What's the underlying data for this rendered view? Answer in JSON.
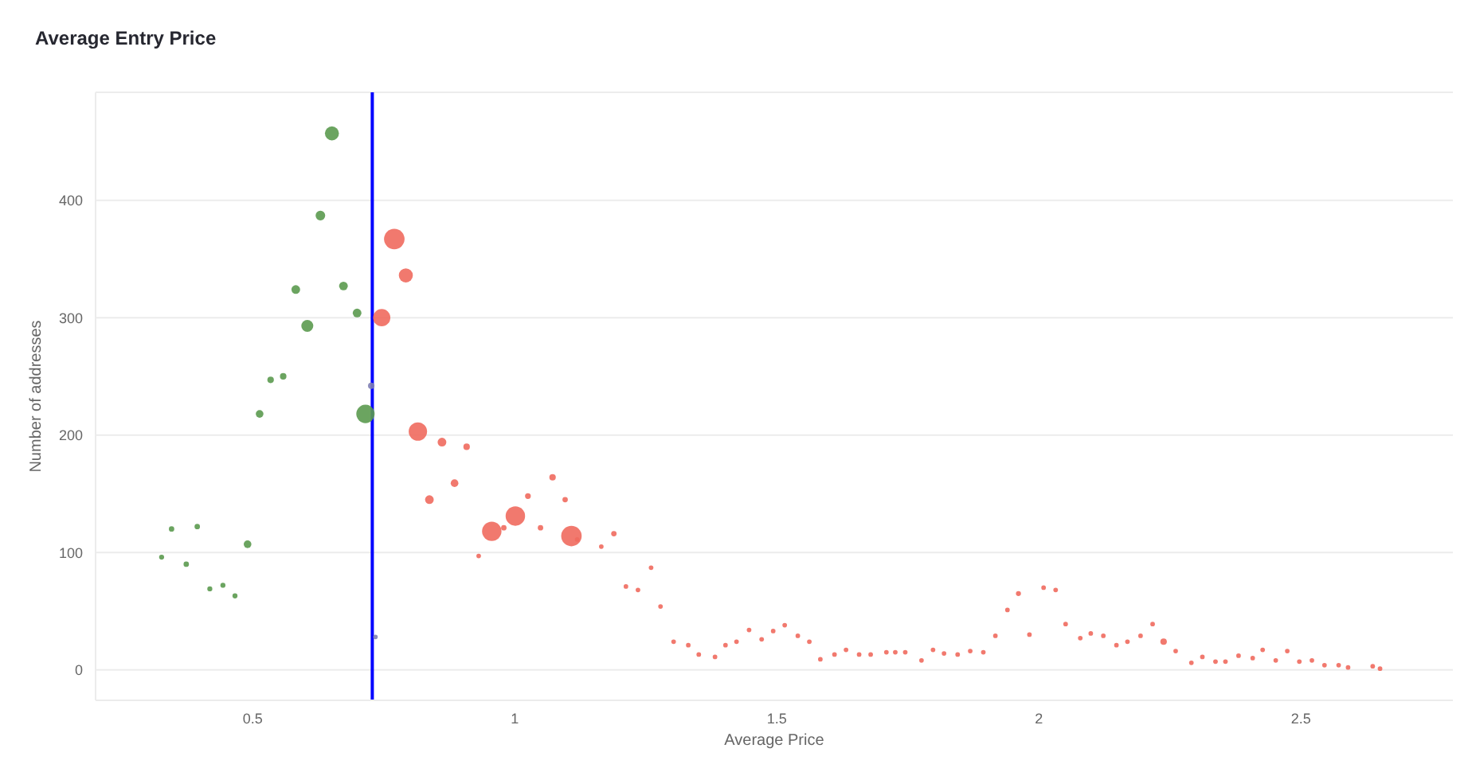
{
  "chart_data": {
    "type": "bubble",
    "title": "Average Entry Price",
    "xlabel": "Average Price",
    "ylabel": "Number of addresses",
    "xlim": [
      0.2,
      2.79
    ],
    "xticks": [
      0.5,
      1,
      1.5,
      2,
      2.5
    ],
    "ylim": [
      -26,
      492
    ],
    "yticks": [
      0,
      100,
      200,
      300,
      400
    ],
    "grid": "y",
    "series": [
      {
        "color": "#5b9a4f",
        "x": [
          0.651,
          0.629,
          0.582,
          0.673,
          0.699,
          0.604,
          0.534,
          0.558,
          0.513,
          0.715,
          0.345,
          0.394,
          0.49,
          0.326,
          0.373,
          0.418,
          0.443,
          0.466
        ],
        "values": [
          457,
          387,
          324,
          327,
          304,
          293,
          247,
          250,
          218,
          218,
          120,
          122,
          107,
          96,
          90,
          69,
          72,
          63
        ],
        "sizes": [
          0.47,
          0.22,
          0.18,
          0.18,
          0.18,
          0.34,
          0.1,
          0.1,
          0.14,
          0.8,
          0.07,
          0.07,
          0.14,
          0.06,
          0.07,
          0.06,
          0.06,
          0.06
        ]
      },
      {
        "color": "#7f7fb5",
        "x": [
          0.726,
          0.734
        ],
        "values": [
          242,
          28
        ],
        "sizes": [
          0.1,
          0.05
        ]
      },
      {
        "color": "#ef6a5e",
        "x": [
          0.77,
          0.792,
          0.746,
          0.815,
          0.861,
          0.908,
          0.885,
          0.837,
          1.072,
          1.025,
          1.096,
          1.001,
          0.956,
          0.979,
          1.049,
          0.931,
          1.108,
          1.119,
          1.165,
          1.189,
          1.212,
          1.235,
          1.26,
          1.278,
          1.303,
          1.331,
          1.351,
          1.382,
          1.402,
          1.423,
          1.447,
          1.471,
          1.493,
          1.515,
          1.54,
          1.562,
          1.583,
          1.61,
          1.632,
          1.657,
          1.679,
          1.709,
          1.726,
          1.745,
          1.776,
          1.798,
          1.819,
          1.845,
          1.869,
          1.894,
          1.917,
          1.94,
          1.961,
          1.982,
          2.009,
          2.032,
          2.051,
          2.079,
          2.099,
          2.123,
          2.148,
          2.169,
          2.194,
          2.217,
          2.238,
          2.261,
          2.291,
          2.312,
          2.337,
          2.356,
          2.381,
          2.408,
          2.427,
          2.452,
          2.474,
          2.497,
          2.521,
          2.545,
          2.572,
          2.59,
          2.637,
          2.651
        ],
        "values": [
          367,
          336,
          300,
          203,
          194,
          190,
          159,
          145,
          164,
          148,
          145,
          131,
          118,
          121,
          121,
          97,
          114,
          111,
          105,
          116,
          71,
          68,
          87,
          54,
          24,
          21,
          13,
          11,
          21,
          24,
          34,
          26,
          33,
          38,
          29,
          24,
          9,
          13,
          17,
          13,
          13,
          15,
          15,
          15,
          8,
          17,
          14,
          13,
          16,
          15,
          29,
          51,
          65,
          30,
          70,
          68,
          39,
          27,
          31,
          29,
          21,
          24,
          29,
          39,
          24,
          16,
          6,
          11,
          7,
          7,
          12,
          10,
          17,
          8,
          16,
          7,
          8,
          4,
          4,
          2,
          3,
          1
        ],
        "sizes": [
          1,
          0.47,
          0.71,
          0.8,
          0.18,
          0.1,
          0.14,
          0.18,
          0.1,
          0.08,
          0.07,
          0.9,
          0.9,
          0.07,
          0.07,
          0.05,
          1,
          0.05,
          0.05,
          0.07,
          0.05,
          0.05,
          0.05,
          0.05,
          0.05,
          0.05,
          0.05,
          0.05,
          0.05,
          0.05,
          0.05,
          0.05,
          0.05,
          0.05,
          0.05,
          0.05,
          0.05,
          0.05,
          0.05,
          0.05,
          0.05,
          0.05,
          0.05,
          0.05,
          0.05,
          0.05,
          0.05,
          0.05,
          0.05,
          0.05,
          0.05,
          0.05,
          0.06,
          0.05,
          0.05,
          0.05,
          0.05,
          0.05,
          0.05,
          0.05,
          0.05,
          0.05,
          0.05,
          0.05,
          0.1,
          0.05,
          0.05,
          0.05,
          0.05,
          0.05,
          0.05,
          0.05,
          0.05,
          0.05,
          0.05,
          0.05,
          0.05,
          0.05,
          0.05,
          0.05,
          0.05,
          0.05
        ]
      }
    ],
    "ref_lines": [
      {
        "axis": "x",
        "value": 0.728,
        "color": "#0000ff"
      }
    ]
  }
}
